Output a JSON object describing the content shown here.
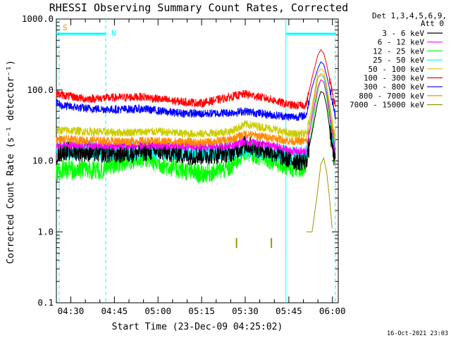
{
  "chart_data": {
    "type": "line",
    "title": "RHESSI Observing Summary Count Rates, Corrected",
    "xlabel": "Start Time (23-Dec-09 04:25:02)",
    "ylabel": "Corrected Count Rate (s⁻¹ detector⁻¹)",
    "y_scale": "log",
    "ylim": [
      0.1,
      1000
    ],
    "yticks": [
      "1000.0",
      "100.0",
      "10.0",
      "1.0",
      "0.1"
    ],
    "x_start": "04:25:02",
    "x_end": "06:02:00",
    "x_ticks": [
      "04:30",
      "04:45",
      "05:00",
      "05:15",
      "05:30",
      "05:45",
      "06:00"
    ],
    "legend_header": [
      "Det 1,3,4,5,6,9,",
      "Att 0"
    ],
    "legend_position": "right",
    "series": [
      {
        "name": "3 - 6 keV",
        "color": "#000000",
        "t": [
          "04:25",
          "04:27",
          "04:45",
          "05:00",
          "05:10",
          "05:15",
          "05:25",
          "05:30",
          "05:40",
          "05:45",
          "05:48",
          "05:51",
          "05:53",
          "05:55",
          "05:56",
          "05:57",
          "05:58",
          "06:00",
          "06:01"
        ],
        "y": [
          12,
          14,
          12.5,
          14,
          12,
          12,
          13,
          17,
          13,
          10.5,
          10,
          10,
          25,
          70,
          95,
          90,
          60,
          15,
          9
        ]
      },
      {
        "name": "6 - 12 keV",
        "color": "#ff00ff",
        "t": [
          "04:25",
          "04:27",
          "04:45",
          "05:00",
          "05:10",
          "05:15",
          "05:25",
          "05:30",
          "05:40",
          "05:45",
          "05:48",
          "05:51",
          "05:53",
          "05:55",
          "05:56",
          "05:57",
          "05:58",
          "06:00",
          "06:01"
        ],
        "y": [
          16,
          17,
          16,
          16.5,
          16,
          15.5,
          16.5,
          19,
          16,
          14,
          13.5,
          13.5,
          40,
          110,
          140,
          130,
          90,
          25,
          14
        ]
      },
      {
        "name": "12 - 25 keV",
        "color": "#00ff00",
        "t": [
          "04:25",
          "04:27",
          "04:40",
          "04:45",
          "04:55",
          "05:05",
          "05:15",
          "05:25",
          "05:30",
          "05:40",
          "05:45",
          "05:48",
          "05:51",
          "05:53",
          "05:55",
          "05:56",
          "05:57",
          "05:58",
          "06:00",
          "06:01"
        ],
        "y": [
          7,
          7.5,
          7.5,
          9,
          11,
          8,
          6.5,
          8,
          14,
          10,
          8,
          8,
          8,
          30,
          100,
          140,
          130,
          80,
          20,
          9
        ]
      },
      {
        "name": "25 - 50 keV",
        "color": "#00ffff",
        "t": [
          "04:25",
          "04:27",
          "04:45",
          "05:00",
          "05:10",
          "05:15",
          "05:25",
          "05:30",
          "05:40",
          "05:45",
          "05:48",
          "05:51",
          "05:53",
          "05:55",
          "05:56",
          "05:57",
          "05:58",
          "06:00",
          "06:01"
        ],
        "y": [
          14,
          14,
          13.5,
          14,
          13.5,
          13.5,
          14,
          15,
          13,
          12,
          12,
          12,
          45,
          150,
          160,
          150,
          100,
          28,
          13
        ]
      },
      {
        "name": "50 - 100 keV",
        "color": "#cccc00",
        "t": [
          "04:25",
          "04:27",
          "04:45",
          "05:00",
          "05:10",
          "05:15",
          "05:25",
          "05:30",
          "05:40",
          "05:45",
          "05:48",
          "05:51",
          "05:53",
          "05:55",
          "05:56",
          "05:57",
          "05:58",
          "06:00",
          "06:01"
        ],
        "y": [
          27,
          27,
          25,
          26,
          24,
          24,
          26,
          33,
          28,
          24,
          24,
          24,
          60,
          175,
          200,
          185,
          120,
          35,
          24
        ]
      },
      {
        "name": "100 - 300 keV",
        "color": "#ff0000",
        "t": [
          "04:25",
          "04:27",
          "04:35",
          "04:45",
          "04:55",
          "05:05",
          "05:15",
          "05:25",
          "05:30",
          "05:38",
          "05:45",
          "05:48",
          "05:51",
          "05:53",
          "05:55",
          "05:56",
          "05:57",
          "05:58",
          "06:00",
          "06:01"
        ],
        "y": [
          90,
          85,
          75,
          78,
          80,
          70,
          65,
          80,
          88,
          75,
          62,
          60,
          62,
          150,
          310,
          370,
          330,
          230,
          90,
          60
        ]
      },
      {
        "name": "300 - 800 keV",
        "color": "#0000ff",
        "t": [
          "04:25",
          "04:27",
          "04:35",
          "04:45",
          "04:55",
          "05:05",
          "05:15",
          "05:25",
          "05:30",
          "05:38",
          "05:45",
          "05:48",
          "05:51",
          "05:53",
          "05:55",
          "05:56",
          "05:57",
          "05:58",
          "06:00",
          "06:01"
        ],
        "y": [
          65,
          60,
          55,
          53,
          54,
          48,
          46,
          48,
          50,
          45,
          42,
          42,
          44,
          110,
          200,
          250,
          230,
          160,
          70,
          42
        ]
      },
      {
        "name": "800 - 7000 keV",
        "color": "#ff8800",
        "t": [
          "04:25",
          "04:27",
          "04:45",
          "05:00",
          "05:10",
          "05:15",
          "05:25",
          "05:30",
          "05:40",
          "05:45",
          "05:48",
          "05:51",
          "05:53",
          "05:55",
          "05:56",
          "05:57",
          "05:58",
          "06:00",
          "06:01"
        ],
        "y": [
          20,
          20,
          19,
          19,
          18.5,
          18,
          20,
          24,
          21,
          19,
          19,
          19,
          50,
          150,
          170,
          160,
          110,
          30,
          19
        ]
      },
      {
        "name": "7000 - 15000 keV",
        "color": "#999900",
        "t": [
          "05:51",
          "05:53",
          "05:55",
          "05:56",
          "05:57",
          "05:58",
          "05:59",
          "06:00"
        ],
        "y": [
          1,
          1,
          4,
          9,
          11,
          7,
          3,
          1
        ]
      }
    ],
    "attenuator_flag": {
      "label": "S",
      "color": "#ff8800"
    },
    "night_flag": {
      "label": "N",
      "color": "#00ffff"
    },
    "bar_color": "#00ffff",
    "dashed_markers": [
      "04:26",
      "04:42",
      "06:01"
    ],
    "solid_markers": [
      "05:44"
    ],
    "flag_bars": [
      {
        "from": "04:25",
        "to": "04:42"
      },
      {
        "from": "05:44",
        "to": "06:01"
      }
    ],
    "event_ticks": [
      "05:27",
      "05:39"
    ],
    "event_tick_color": "#999900"
  },
  "footer": {
    "generated": "16-Oct-2021 23:03"
  }
}
